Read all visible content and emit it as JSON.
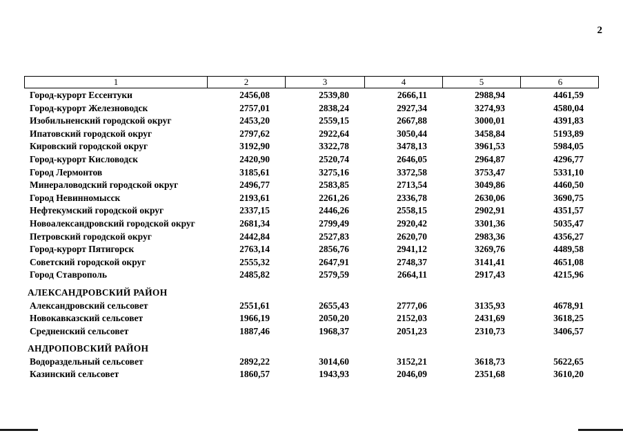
{
  "page_number": "2",
  "colors": {
    "text": "#000000",
    "background": "#ffffff",
    "table_border": "#000000"
  },
  "table": {
    "headers": [
      "1",
      "2",
      "3",
      "4",
      "5",
      "6"
    ],
    "sections": [
      {
        "title": "",
        "rows": [
          {
            "name": "Город-курорт Ессентуки",
            "values": [
              "2456,08",
              "2539,80",
              "2666,11",
              "2988,94",
              "4461,59"
            ]
          },
          {
            "name": "Город-курорт Железноводск",
            "values": [
              "2757,01",
              "2838,24",
              "2927,34",
              "3274,93",
              "4580,04"
            ]
          },
          {
            "name": "Изобильненский городской округ",
            "values": [
              "2453,20",
              "2559,15",
              "2667,88",
              "3000,01",
              "4391,83"
            ]
          },
          {
            "name": "Ипатовский городской округ",
            "values": [
              "2797,62",
              "2922,64",
              "3050,44",
              "3458,84",
              "5193,89"
            ]
          },
          {
            "name": "Кировский городской округ",
            "values": [
              "3192,90",
              "3322,78",
              "3478,13",
              "3961,53",
              "5984,05"
            ]
          },
          {
            "name": "Город-курорт Кисловодск",
            "values": [
              "2420,90",
              "2520,74",
              "2646,05",
              "2964,87",
              "4296,77"
            ]
          },
          {
            "name": "Город Лермонтов",
            "values": [
              "3185,61",
              "3275,16",
              "3372,58",
              "3753,47",
              "5331,10"
            ]
          },
          {
            "name": "Минераловодский городской округ",
            "values": [
              "2496,77",
              "2583,85",
              "2713,54",
              "3049,86",
              "4460,50"
            ]
          },
          {
            "name": "Город Невинномысск",
            "values": [
              "2193,61",
              "2261,26",
              "2336,78",
              "2630,06",
              "3690,75"
            ]
          },
          {
            "name": "Нефтекумский городской округ",
            "values": [
              "2337,15",
              "2446,26",
              "2558,15",
              "2902,91",
              "4351,57"
            ]
          },
          {
            "name": "Новоалександровский городской округ",
            "values": [
              "2681,34",
              "2799,49",
              "2920,42",
              "3301,36",
              "5035,47"
            ]
          },
          {
            "name": "Петровский городской округ",
            "values": [
              "2442,84",
              "2527,83",
              "2620,70",
              "2983,36",
              "4356,27"
            ]
          },
          {
            "name": "Город-курорт Пятигорск",
            "values": [
              "2763,14",
              "2856,76",
              "2941,12",
              "3269,76",
              "4489,58"
            ]
          },
          {
            "name": "Советский городской округ",
            "values": [
              "2555,32",
              "2647,91",
              "2748,37",
              "3141,41",
              "4651,08"
            ]
          },
          {
            "name": "Город Ставрополь",
            "values": [
              "2485,82",
              "2579,59",
              "2664,11",
              "2917,43",
              "4215,96"
            ]
          }
        ]
      },
      {
        "title": "АЛЕКСАНДРОВСКИЙ РАЙОН",
        "rows": [
          {
            "name": "Александровский сельсовет",
            "values": [
              "2551,61",
              "2655,43",
              "2777,06",
              "3135,93",
              "4678,91"
            ]
          },
          {
            "name": "Новокавказский сельсовет",
            "values": [
              "1966,19",
              "2050,20",
              "2152,03",
              "2431,69",
              "3618,25"
            ]
          },
          {
            "name": "Средненский сельсовет",
            "values": [
              "1887,46",
              "1968,37",
              "2051,23",
              "2310,73",
              "3406,57"
            ]
          }
        ]
      },
      {
        "title": "АНДРОПОВСКИЙ РАЙОН",
        "rows": [
          {
            "name": "Водораздельный сельсовет",
            "values": [
              "2892,22",
              "3014,60",
              "3152,21",
              "3618,73",
              "5622,65"
            ]
          },
          {
            "name": "Казинский сельсовет",
            "values": [
              "1860,57",
              "1943,93",
              "2046,09",
              "2351,68",
              "3610,20"
            ]
          }
        ]
      }
    ]
  }
}
